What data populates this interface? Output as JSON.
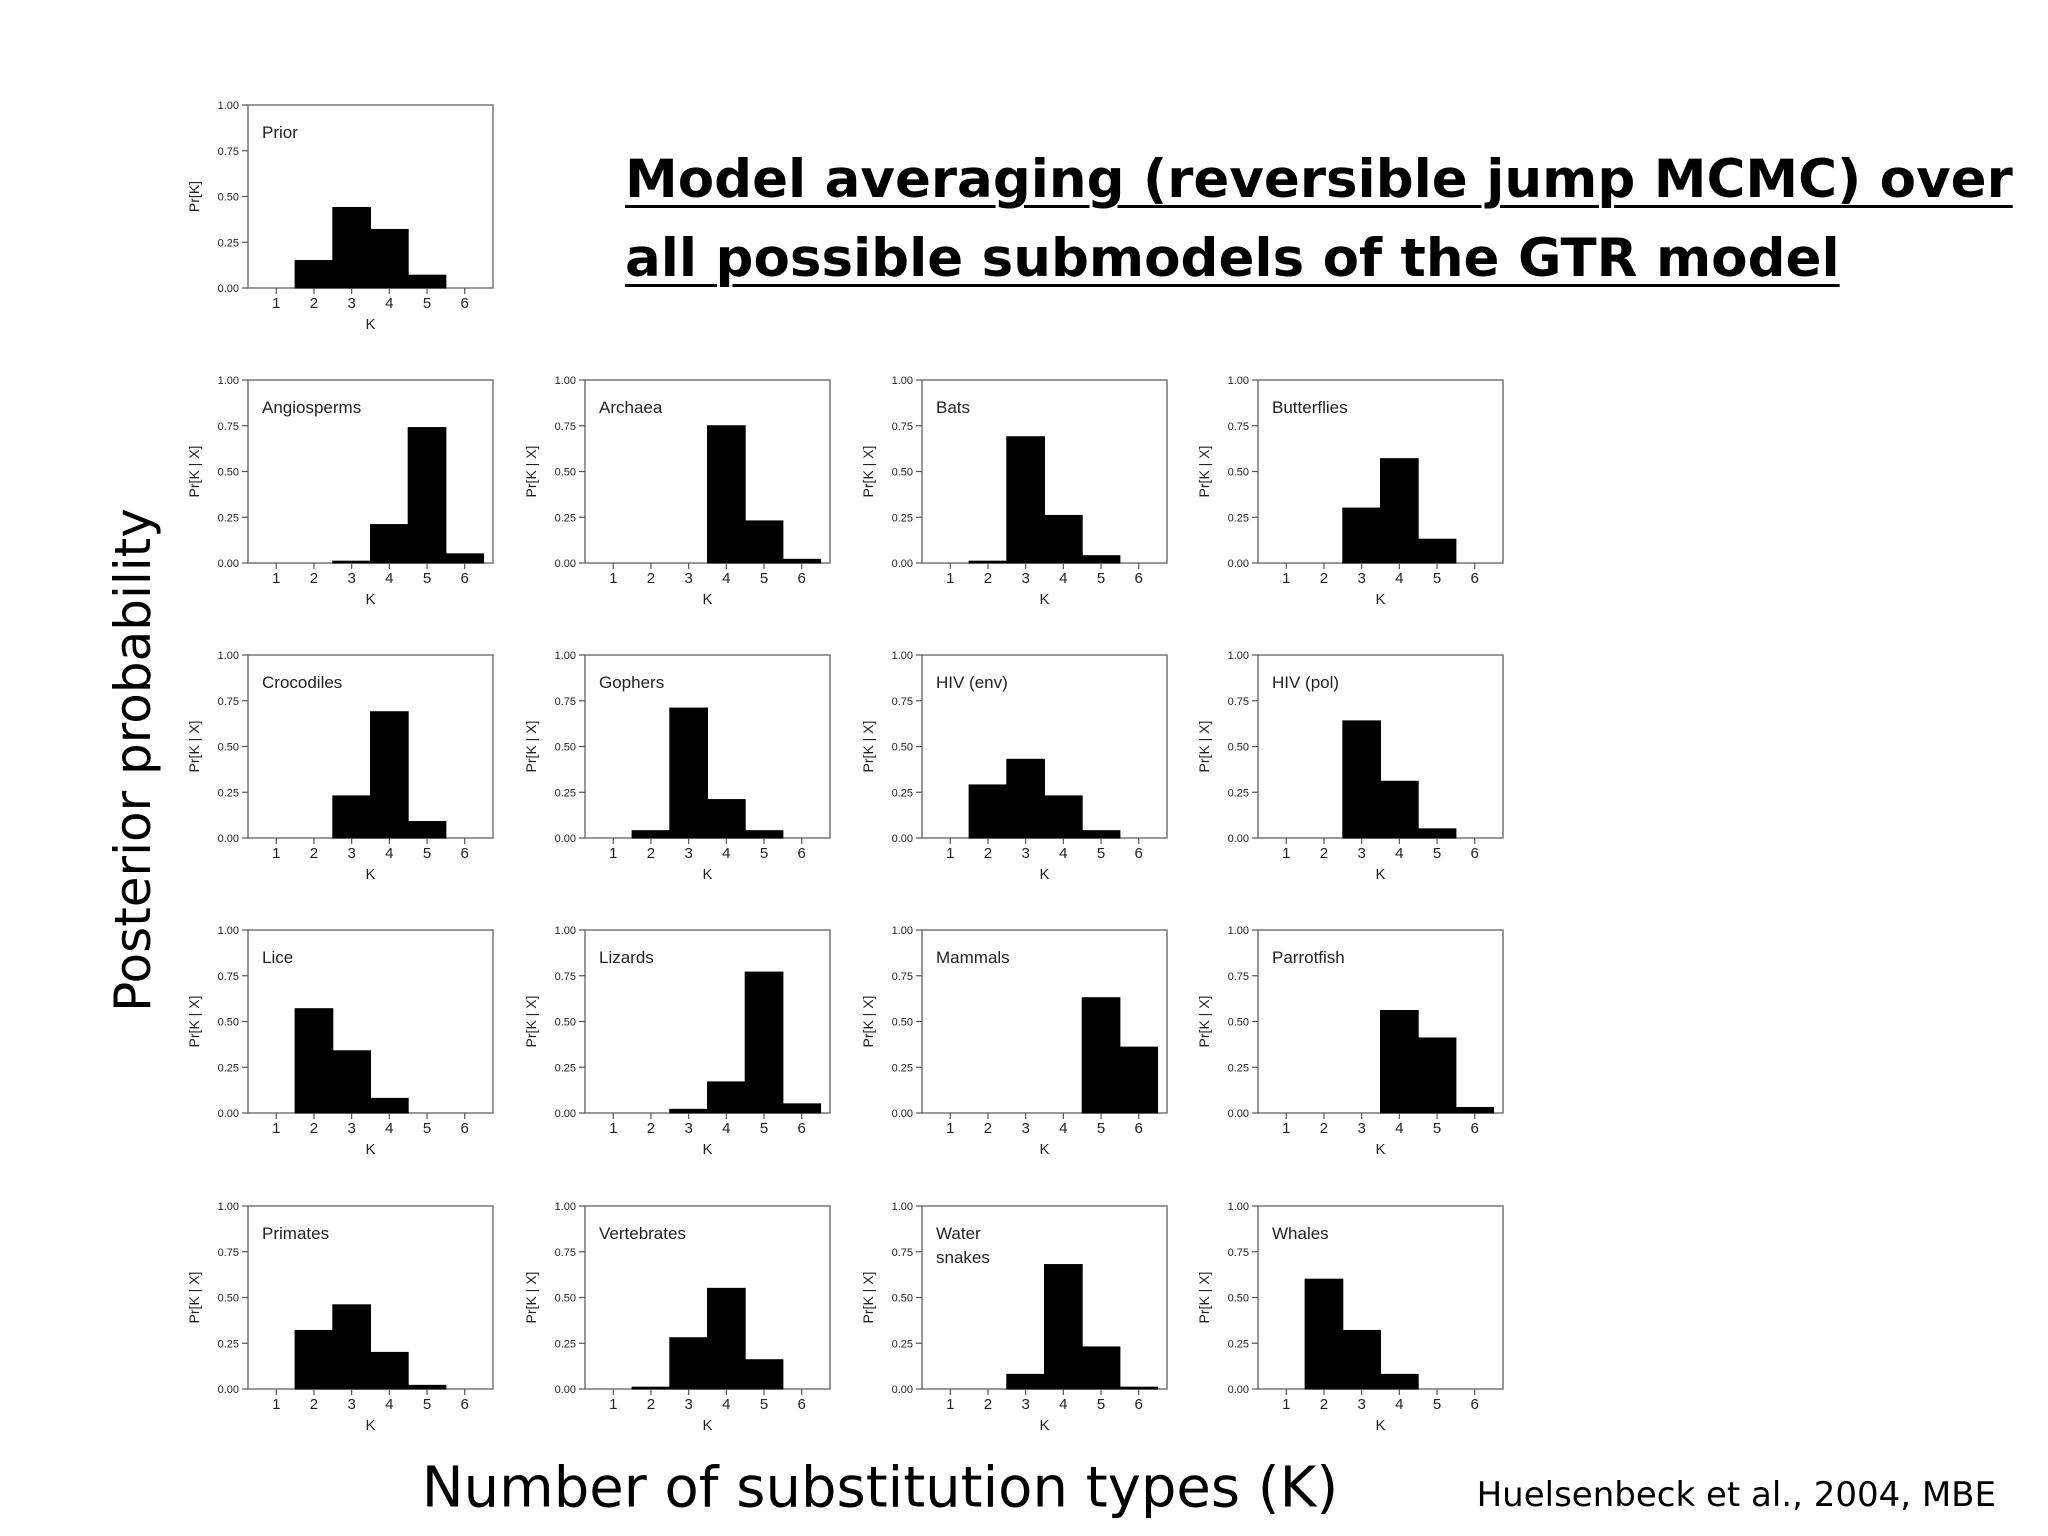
{
  "slide": {
    "title_line1": "Model averaging (reversible jump MCMC) over",
    "title_line2": "all possible submodels of the GTR model",
    "ylabel": "Posterior probability",
    "xlabel": "Number of substitution types (K)",
    "citation": "Huelsenbeck et al., 2004, MBE"
  },
  "chart_data": [
    {
      "type": "bar",
      "title": "Prior",
      "ylabel": "Pr[K]",
      "xlabel": "K",
      "categories": [
        1,
        2,
        3,
        4,
        5,
        6
      ],
      "values": [
        0.0,
        0.15,
        0.44,
        0.32,
        0.07,
        0.0
      ],
      "ylim": [
        0,
        1
      ],
      "yticks": [
        "0.00",
        "0.25",
        "0.50",
        "0.75",
        "1.00"
      ]
    },
    {
      "type": "bar",
      "title": "Angiosperms",
      "ylabel": "Pr[K | X]",
      "xlabel": "K",
      "categories": [
        1,
        2,
        3,
        4,
        5,
        6
      ],
      "values": [
        0.0,
        0.0,
        0.01,
        0.21,
        0.74,
        0.05
      ],
      "ylim": [
        0,
        1
      ],
      "yticks": [
        "0.00",
        "0.25",
        "0.50",
        "0.75",
        "1.00"
      ]
    },
    {
      "type": "bar",
      "title": "Archaea",
      "ylabel": "Pr[K | X]",
      "xlabel": "K",
      "categories": [
        1,
        2,
        3,
        4,
        5,
        6
      ],
      "values": [
        0.0,
        0.0,
        0.0,
        0.75,
        0.23,
        0.02
      ],
      "ylim": [
        0,
        1
      ],
      "yticks": [
        "0.00",
        "0.25",
        "0.50",
        "0.75",
        "1.00"
      ]
    },
    {
      "type": "bar",
      "title": "Bats",
      "ylabel": "Pr[K | X]",
      "xlabel": "K",
      "categories": [
        1,
        2,
        3,
        4,
        5,
        6
      ],
      "values": [
        0.0,
        0.01,
        0.69,
        0.26,
        0.04,
        0.0
      ],
      "ylim": [
        0,
        1
      ],
      "yticks": [
        "0.00",
        "0.25",
        "0.50",
        "0.75",
        "1.00"
      ]
    },
    {
      "type": "bar",
      "title": "Butterflies",
      "ylabel": "Pr[K | X]",
      "xlabel": "K",
      "categories": [
        1,
        2,
        3,
        4,
        5,
        6
      ],
      "values": [
        0.0,
        0.0,
        0.3,
        0.57,
        0.13,
        0.0
      ],
      "ylim": [
        0,
        1
      ],
      "yticks": [
        "0.00",
        "0.25",
        "0.50",
        "0.75",
        "1.00"
      ]
    },
    {
      "type": "bar",
      "title": "Crocodiles",
      "ylabel": "Pr[K | X]",
      "xlabel": "K",
      "categories": [
        1,
        2,
        3,
        4,
        5,
        6
      ],
      "values": [
        0.0,
        0.0,
        0.23,
        0.69,
        0.09,
        0.0
      ],
      "ylim": [
        0,
        1
      ],
      "yticks": [
        "0.00",
        "0.25",
        "0.50",
        "0.75",
        "1.00"
      ]
    },
    {
      "type": "bar",
      "title": "Gophers",
      "ylabel": "Pr[K | X]",
      "xlabel": "K",
      "categories": [
        1,
        2,
        3,
        4,
        5,
        6
      ],
      "values": [
        0.0,
        0.04,
        0.71,
        0.21,
        0.04,
        0.0
      ],
      "ylim": [
        0,
        1
      ],
      "yticks": [
        "0.00",
        "0.25",
        "0.50",
        "0.75",
        "1.00"
      ]
    },
    {
      "type": "bar",
      "title": "HIV (env)",
      "ylabel": "Pr[K | X]",
      "xlabel": "K",
      "categories": [
        1,
        2,
        3,
        4,
        5,
        6
      ],
      "values": [
        0.0,
        0.29,
        0.43,
        0.23,
        0.04,
        0.0
      ],
      "ylim": [
        0,
        1
      ],
      "yticks": [
        "0.00",
        "0.25",
        "0.50",
        "0.75",
        "1.00"
      ]
    },
    {
      "type": "bar",
      "title": "HIV (pol)",
      "ylabel": "Pr[K | X]",
      "xlabel": "K",
      "categories": [
        1,
        2,
        3,
        4,
        5,
        6
      ],
      "values": [
        0.0,
        0.0,
        0.64,
        0.31,
        0.05,
        0.0
      ],
      "ylim": [
        0,
        1
      ],
      "yticks": [
        "0.00",
        "0.25",
        "0.50",
        "0.75",
        "1.00"
      ]
    },
    {
      "type": "bar",
      "title": "Lice",
      "ylabel": "Pr[K | X]",
      "xlabel": "K",
      "categories": [
        1,
        2,
        3,
        4,
        5,
        6
      ],
      "values": [
        0.0,
        0.57,
        0.34,
        0.08,
        0.0,
        0.0
      ],
      "ylim": [
        0,
        1
      ],
      "yticks": [
        "0.00",
        "0.25",
        "0.50",
        "0.75",
        "1.00"
      ]
    },
    {
      "type": "bar",
      "title": "Lizards",
      "ylabel": "Pr[K | X]",
      "xlabel": "K",
      "categories": [
        1,
        2,
        3,
        4,
        5,
        6
      ],
      "values": [
        0.0,
        0.0,
        0.02,
        0.17,
        0.77,
        0.05
      ],
      "ylim": [
        0,
        1
      ],
      "yticks": [
        "0.00",
        "0.25",
        "0.50",
        "0.75",
        "1.00"
      ]
    },
    {
      "type": "bar",
      "title": "Mammals",
      "ylabel": "Pr[K | X]",
      "xlabel": "K",
      "categories": [
        1,
        2,
        3,
        4,
        5,
        6
      ],
      "values": [
        0.0,
        0.0,
        0.0,
        0.0,
        0.63,
        0.36
      ],
      "ylim": [
        0,
        1
      ],
      "yticks": [
        "0.00",
        "0.25",
        "0.50",
        "0.75",
        "1.00"
      ]
    },
    {
      "type": "bar",
      "title": "Parrotfish",
      "ylabel": "Pr[K | X]",
      "xlabel": "K",
      "categories": [
        1,
        2,
        3,
        4,
        5,
        6
      ],
      "values": [
        0.0,
        0.0,
        0.0,
        0.56,
        0.41,
        0.03
      ],
      "ylim": [
        0,
        1
      ],
      "yticks": [
        "0.00",
        "0.25",
        "0.50",
        "0.75",
        "1.00"
      ]
    },
    {
      "type": "bar",
      "title": "Primates",
      "ylabel": "Pr[K | X]",
      "xlabel": "K",
      "categories": [
        1,
        2,
        3,
        4,
        5,
        6
      ],
      "values": [
        0.0,
        0.32,
        0.46,
        0.2,
        0.02,
        0.0
      ],
      "ylim": [
        0,
        1
      ],
      "yticks": [
        "0.00",
        "0.25",
        "0.50",
        "0.75",
        "1.00"
      ]
    },
    {
      "type": "bar",
      "title": "Vertebrates",
      "ylabel": "Pr[K | X]",
      "xlabel": "K",
      "categories": [
        1,
        2,
        3,
        4,
        5,
        6
      ],
      "values": [
        0.0,
        0.01,
        0.28,
        0.55,
        0.16,
        0.0
      ],
      "ylim": [
        0,
        1
      ],
      "yticks": [
        "0.00",
        "0.25",
        "0.50",
        "0.75",
        "1.00"
      ]
    },
    {
      "type": "bar",
      "title": "Water snakes",
      "ylabel": "Pr[K | X]",
      "xlabel": "K",
      "categories": [
        1,
        2,
        3,
        4,
        5,
        6
      ],
      "values": [
        0.0,
        0.0,
        0.08,
        0.68,
        0.23,
        0.01
      ],
      "ylim": [
        0,
        1
      ],
      "yticks": [
        "0.00",
        "0.25",
        "0.50",
        "0.75",
        "1.00"
      ]
    },
    {
      "type": "bar",
      "title": "Whales",
      "ylabel": "Pr[K | X]",
      "xlabel": "K",
      "categories": [
        1,
        2,
        3,
        4,
        5,
        6
      ],
      "values": [
        0.0,
        0.6,
        0.32,
        0.08,
        0.0,
        0.0
      ],
      "ylim": [
        0,
        1
      ],
      "yticks": [
        "0.00",
        "0.25",
        "0.50",
        "0.75",
        "1.00"
      ]
    }
  ]
}
